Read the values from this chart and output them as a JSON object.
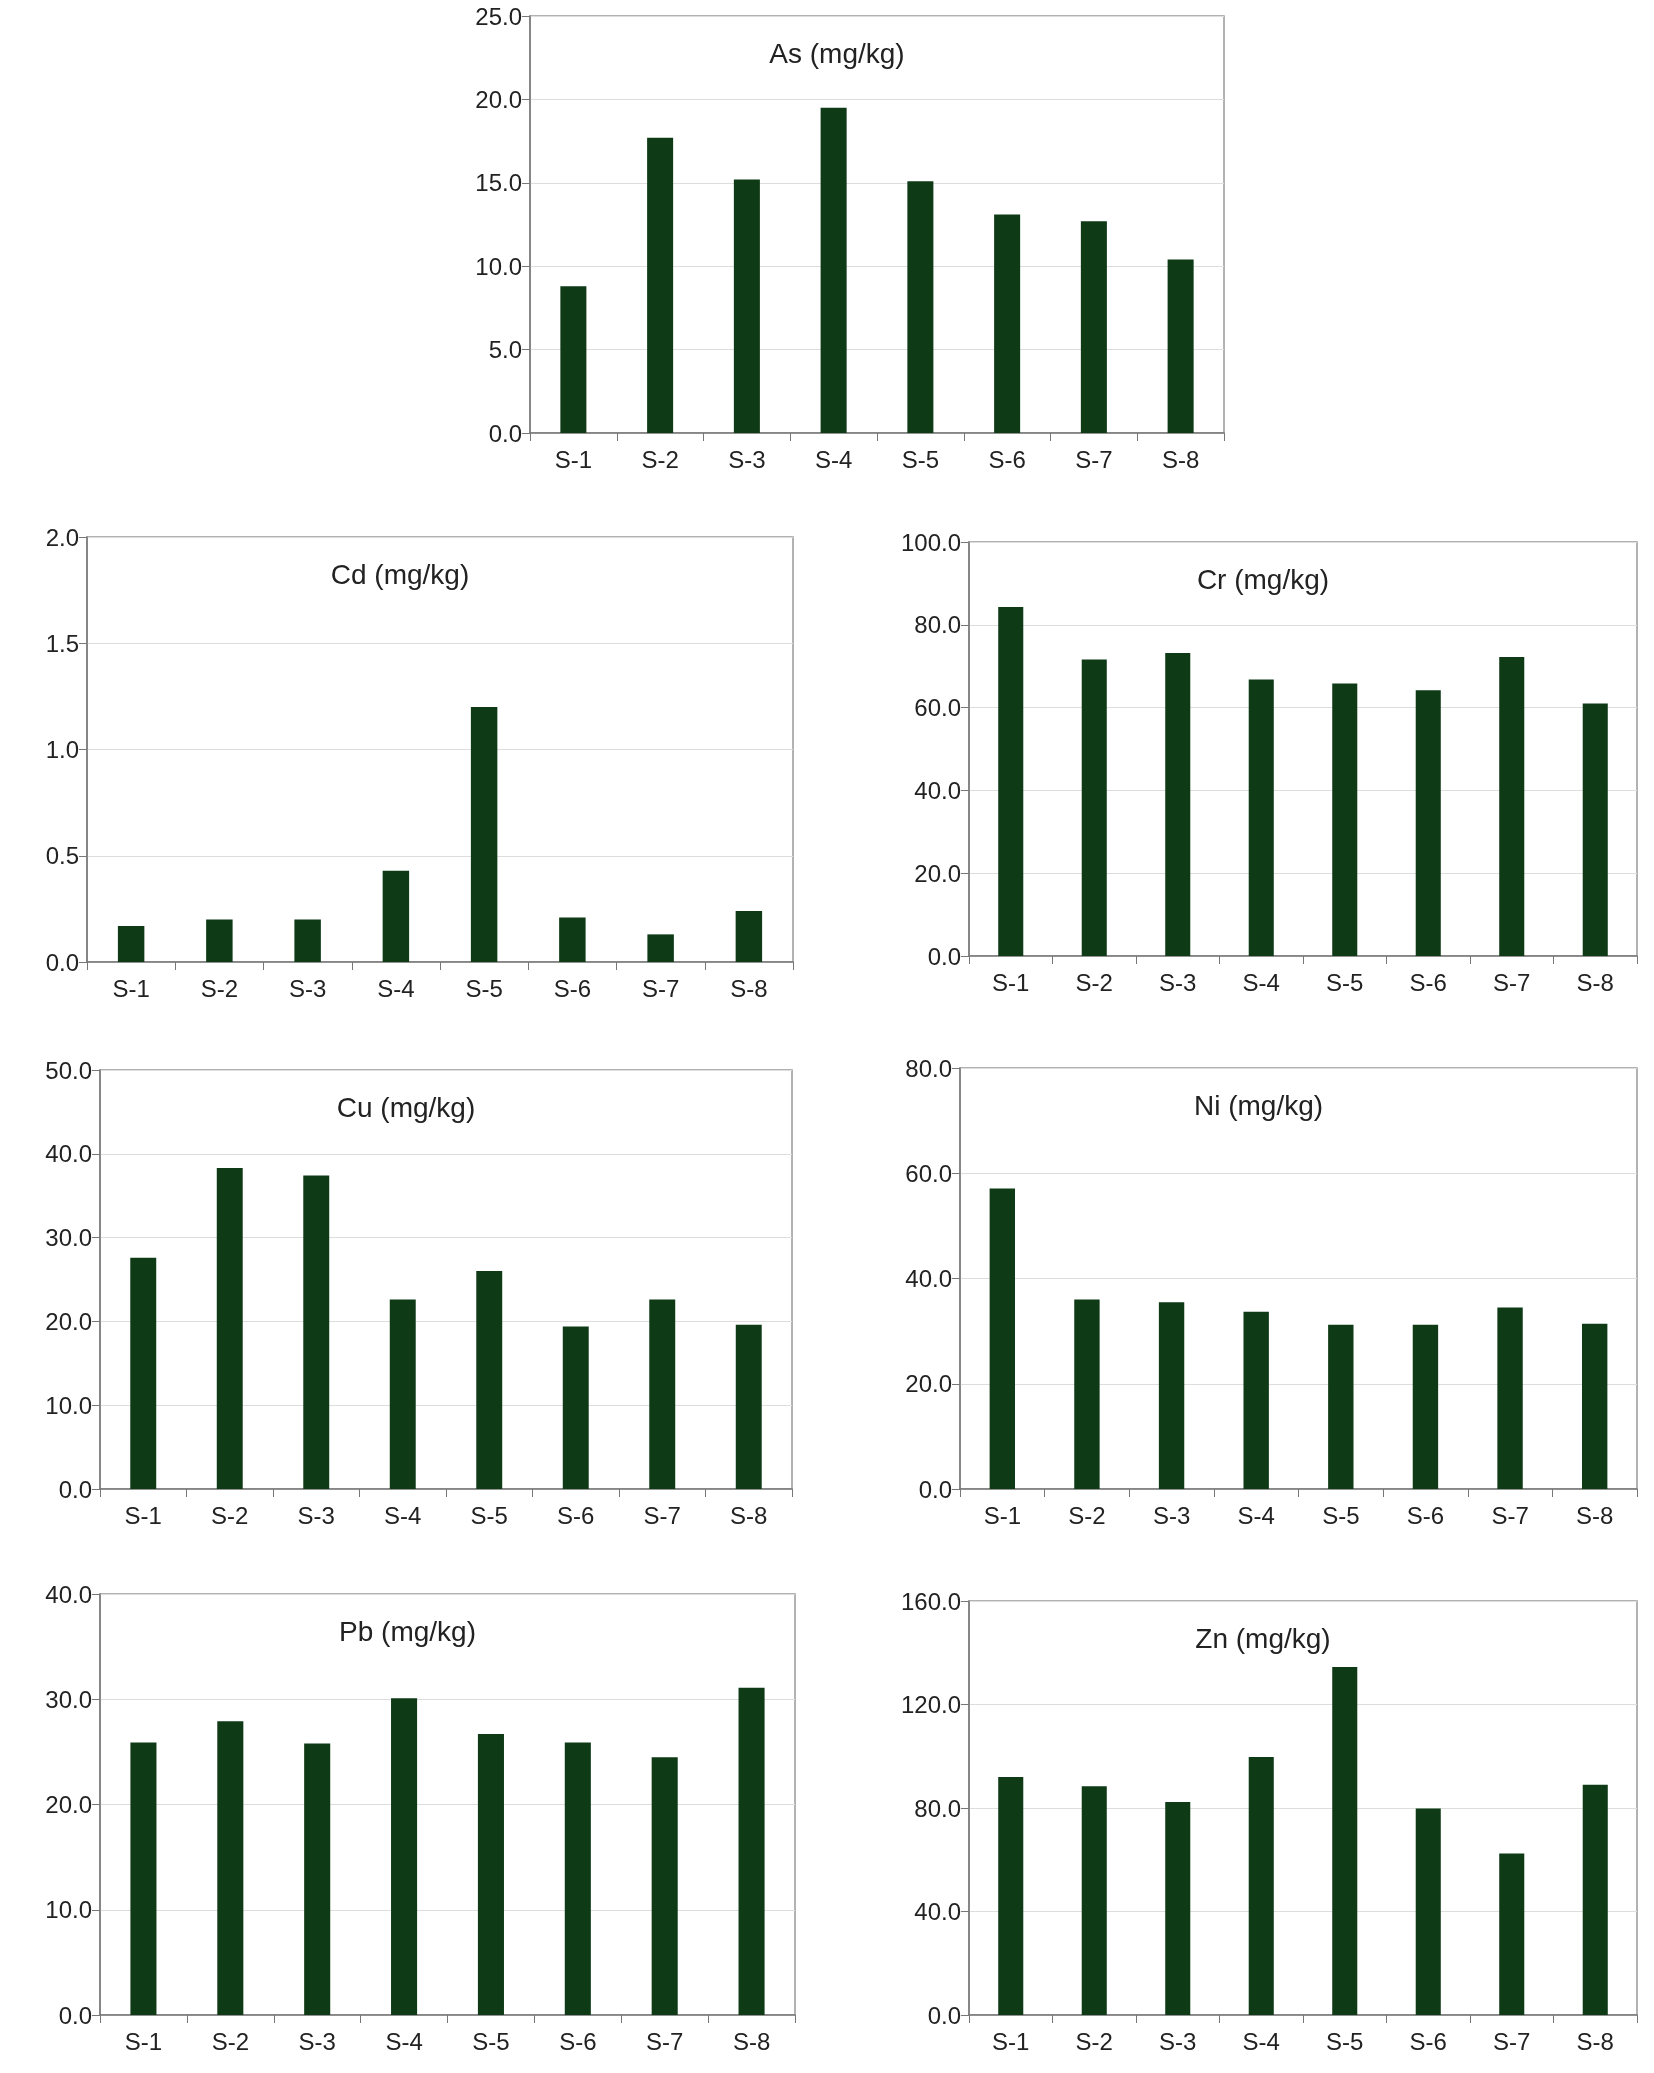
{
  "chart_data": [
    {
      "type": "bar",
      "title": "As (mg/kg)",
      "categories": [
        "S-1",
        "S-2",
        "S-3",
        "S-4",
        "S-5",
        "S-6",
        "S-7",
        "S-8"
      ],
      "values": [
        8.8,
        17.7,
        15.2,
        19.5,
        15.1,
        13.1,
        12.7,
        10.4
      ],
      "color": "#0f3a16",
      "ylim": [
        0,
        25
      ],
      "yticks": [
        {
          "value": 0,
          "label": "0.0"
        },
        {
          "value": 5,
          "label": "5.0"
        },
        {
          "value": 10,
          "label": "10.0"
        },
        {
          "value": 15,
          "label": "15.0"
        },
        {
          "value": 20,
          "label": "20.0"
        },
        {
          "value": 25,
          "label": "25.0"
        }
      ],
      "grid": "y"
    },
    {
      "type": "bar",
      "title": "Cd (mg/kg)",
      "categories": [
        "S-1",
        "S-2",
        "S-3",
        "S-4",
        "S-5",
        "S-6",
        "S-7",
        "S-8"
      ],
      "values": [
        0.17,
        0.2,
        0.2,
        0.43,
        1.2,
        0.21,
        0.13,
        0.24
      ],
      "color": "#0f3a16",
      "ylim": [
        0,
        2
      ],
      "yticks": [
        {
          "value": 0,
          "label": "0.0"
        },
        {
          "value": 0.5,
          "label": "0.5"
        },
        {
          "value": 1,
          "label": "1.0"
        },
        {
          "value": 1.5,
          "label": "1.5"
        },
        {
          "value": 2,
          "label": "2.0"
        }
      ],
      "grid": "y"
    },
    {
      "type": "bar",
      "title": "Cr (mg/kg)",
      "categories": [
        "S-1",
        "S-2",
        "S-3",
        "S-4",
        "S-5",
        "S-6",
        "S-7",
        "S-8"
      ],
      "values": [
        84.3,
        71.6,
        73.2,
        66.8,
        65.8,
        64.2,
        72.2,
        61.0
      ],
      "color": "#0f3a16",
      "ylim": [
        0,
        100
      ],
      "yticks": [
        {
          "value": 0,
          "label": "0.0"
        },
        {
          "value": 20,
          "label": "20.0"
        },
        {
          "value": 40,
          "label": "40.0"
        },
        {
          "value": 60,
          "label": "60.0"
        },
        {
          "value": 80,
          "label": "80.0"
        },
        {
          "value": 100,
          "label": "100.0"
        }
      ],
      "grid": "y"
    },
    {
      "type": "bar",
      "title": "Cu (mg/kg)",
      "categories": [
        "S-1",
        "S-2",
        "S-3",
        "S-4",
        "S-5",
        "S-6",
        "S-7",
        "S-8"
      ],
      "values": [
        27.6,
        38.3,
        37.4,
        22.6,
        26.0,
        19.4,
        22.6,
        19.6
      ],
      "color": "#0f3a16",
      "ylim": [
        0,
        50
      ],
      "yticks": [
        {
          "value": 0,
          "label": "0.0"
        },
        {
          "value": 10,
          "label": "10.0"
        },
        {
          "value": 20,
          "label": "20.0"
        },
        {
          "value": 30,
          "label": "30.0"
        },
        {
          "value": 40,
          "label": "40.0"
        },
        {
          "value": 50,
          "label": "50.0"
        }
      ],
      "grid": "y"
    },
    {
      "type": "bar",
      "title": "Ni (mg/kg)",
      "categories": [
        "S-1",
        "S-2",
        "S-3",
        "S-4",
        "S-5",
        "S-6",
        "S-7",
        "S-8"
      ],
      "values": [
        57.1,
        36.0,
        35.5,
        33.7,
        31.2,
        31.2,
        34.5,
        31.4
      ],
      "color": "#0f3a16",
      "ylim": [
        0,
        80
      ],
      "yticks": [
        {
          "value": 0,
          "label": "0.0"
        },
        {
          "value": 20,
          "label": "20.0"
        },
        {
          "value": 40,
          "label": "40.0"
        },
        {
          "value": 60,
          "label": "60.0"
        },
        {
          "value": 80,
          "label": "80.0"
        }
      ],
      "grid": "y"
    },
    {
      "type": "bar",
      "title": "Pb (mg/kg)",
      "categories": [
        "S-1",
        "S-2",
        "S-3",
        "S-4",
        "S-5",
        "S-6",
        "S-7",
        "S-8"
      ],
      "values": [
        25.9,
        27.9,
        25.8,
        30.1,
        26.7,
        25.9,
        24.5,
        31.1
      ],
      "color": "#0f3a16",
      "ylim": [
        0,
        40
      ],
      "yticks": [
        {
          "value": 0,
          "label": "0.0"
        },
        {
          "value": 10,
          "label": "10.0"
        },
        {
          "value": 20,
          "label": "20.0"
        },
        {
          "value": 30,
          "label": "30.0"
        },
        {
          "value": 40,
          "label": "40.0"
        }
      ],
      "grid": "y"
    },
    {
      "type": "bar",
      "title": "Zn (mg/kg)",
      "categories": [
        "S-1",
        "S-2",
        "S-3",
        "S-4",
        "S-5",
        "S-6",
        "S-7",
        "S-8"
      ],
      "values": [
        92,
        88.4,
        82.3,
        99.7,
        134.5,
        79.8,
        62.4,
        89
      ],
      "color": "#0f3a16",
      "ylim": [
        0,
        160
      ],
      "yticks": [
        {
          "value": 0,
          "label": "0.0"
        },
        {
          "value": 40,
          "label": "40.0"
        },
        {
          "value": 80,
          "label": "80.0"
        },
        {
          "value": 120,
          "label": "120.0"
        },
        {
          "value": 160,
          "label": "160.0"
        }
      ],
      "grid": "y"
    }
  ]
}
